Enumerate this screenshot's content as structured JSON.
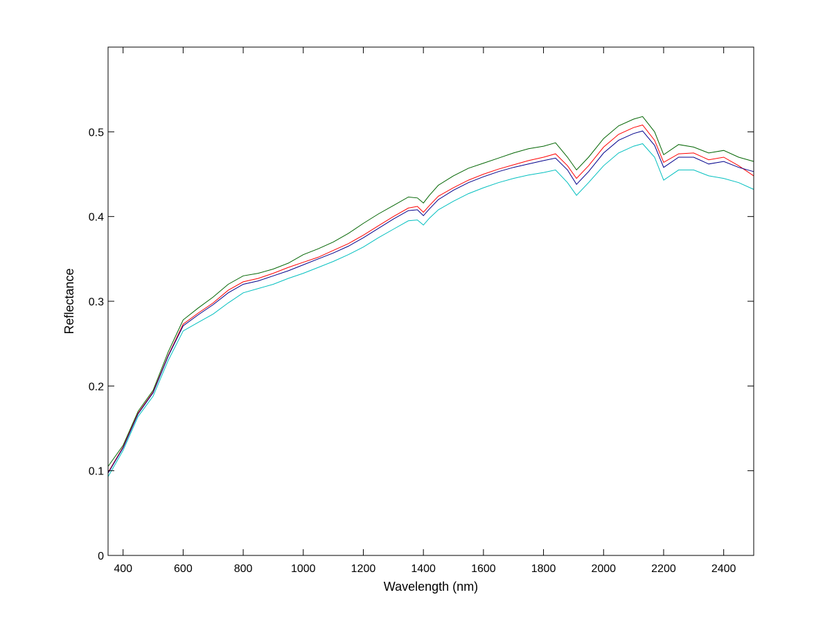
{
  "chart_data": {
    "type": "line",
    "title": "",
    "xlabel": "Wavelength (nm)",
    "ylabel": "Reflectance",
    "xlim": [
      350,
      2500
    ],
    "ylim": [
      0,
      0.6
    ],
    "xticks": [
      400,
      600,
      800,
      1000,
      1200,
      1400,
      1600,
      1800,
      2000,
      2200,
      2400
    ],
    "yticks": [
      0,
      0.1,
      0.2,
      0.3,
      0.4,
      0.5
    ],
    "xtick_labels": [
      "400",
      "600",
      "800",
      "1000",
      "1200",
      "1400",
      "1600",
      "1800",
      "2000",
      "2200",
      "2400"
    ],
    "ytick_labels": [
      "0",
      "0.1",
      "0.2",
      "0.3",
      "0.4",
      "0.5"
    ],
    "grid": false,
    "legend": "none",
    "x": [
      350,
      400,
      450,
      500,
      550,
      600,
      650,
      700,
      750,
      800,
      850,
      900,
      950,
      1000,
      1050,
      1100,
      1150,
      1200,
      1250,
      1300,
      1350,
      1380,
      1400,
      1420,
      1450,
      1500,
      1550,
      1600,
      1650,
      1700,
      1750,
      1800,
      1840,
      1880,
      1910,
      1950,
      2000,
      2050,
      2100,
      2130,
      2170,
      2200,
      2250,
      2300,
      2350,
      2400,
      2450,
      2500
    ],
    "series": [
      {
        "color": "#006400",
        "values": [
          0.105,
          0.13,
          0.17,
          0.195,
          0.24,
          0.278,
          0.292,
          0.305,
          0.32,
          0.33,
          0.333,
          0.338,
          0.345,
          0.355,
          0.362,
          0.37,
          0.38,
          0.392,
          0.403,
          0.413,
          0.423,
          0.422,
          0.416,
          0.425,
          0.437,
          0.448,
          0.457,
          0.463,
          0.469,
          0.475,
          0.48,
          0.483,
          0.487,
          0.47,
          0.455,
          0.47,
          0.492,
          0.507,
          0.515,
          0.518,
          0.5,
          0.473,
          0.485,
          0.482,
          0.475,
          0.478,
          0.47,
          0.465
        ]
      },
      {
        "color": "#ff0000",
        "values": [
          0.098,
          0.128,
          0.168,
          0.193,
          0.236,
          0.273,
          0.286,
          0.298,
          0.313,
          0.323,
          0.327,
          0.333,
          0.34,
          0.346,
          0.352,
          0.36,
          0.368,
          0.378,
          0.389,
          0.4,
          0.41,
          0.412,
          0.405,
          0.413,
          0.424,
          0.434,
          0.443,
          0.45,
          0.456,
          0.461,
          0.466,
          0.47,
          0.474,
          0.46,
          0.445,
          0.46,
          0.482,
          0.497,
          0.505,
          0.508,
          0.49,
          0.464,
          0.474,
          0.475,
          0.467,
          0.47,
          0.46,
          0.448
        ]
      },
      {
        "color": "#00008b",
        "values": [
          0.097,
          0.127,
          0.167,
          0.192,
          0.235,
          0.271,
          0.284,
          0.296,
          0.31,
          0.32,
          0.324,
          0.33,
          0.336,
          0.343,
          0.35,
          0.357,
          0.365,
          0.375,
          0.386,
          0.397,
          0.407,
          0.408,
          0.401,
          0.409,
          0.42,
          0.431,
          0.44,
          0.447,
          0.453,
          0.458,
          0.462,
          0.466,
          0.469,
          0.455,
          0.438,
          0.453,
          0.475,
          0.49,
          0.498,
          0.501,
          0.484,
          0.458,
          0.47,
          0.47,
          0.462,
          0.465,
          0.458,
          0.453
        ]
      },
      {
        "color": "#00bfbf",
        "values": [
          0.093,
          0.124,
          0.164,
          0.188,
          0.23,
          0.265,
          0.275,
          0.285,
          0.298,
          0.31,
          0.315,
          0.32,
          0.327,
          0.333,
          0.34,
          0.347,
          0.355,
          0.364,
          0.375,
          0.385,
          0.395,
          0.396,
          0.39,
          0.398,
          0.408,
          0.418,
          0.427,
          0.434,
          0.44,
          0.445,
          0.449,
          0.452,
          0.455,
          0.44,
          0.425,
          0.44,
          0.46,
          0.475,
          0.483,
          0.486,
          0.47,
          0.443,
          0.455,
          0.455,
          0.448,
          0.445,
          0.44,
          0.432
        ]
      }
    ]
  }
}
